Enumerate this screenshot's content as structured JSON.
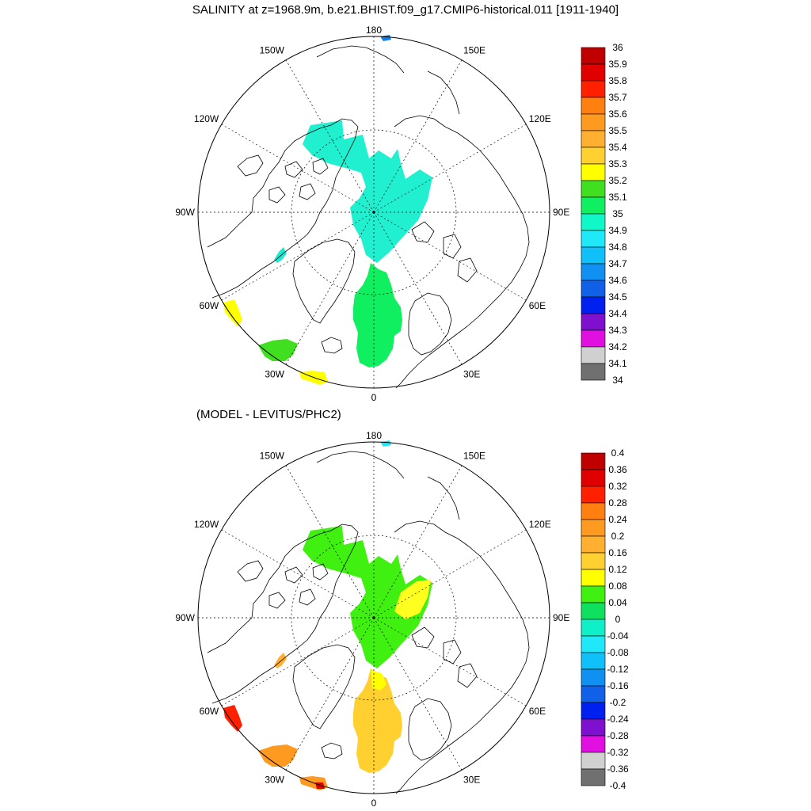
{
  "figure": {
    "title": "SALINITY at z=1968.9m, b.e21.BHIST.f09_g17.CMIP6-historical.011 [1911-1940]",
    "subtitle": "(MODEL - LEVITUS/PHC2)"
  },
  "map": {
    "projection": "north-polar-stereographic",
    "longitude_labels": [
      "180",
      "150E",
      "120E",
      "90E",
      "60E",
      "30E",
      "0",
      "30W",
      "60W",
      "90W",
      "120W",
      "150W"
    ]
  },
  "colorbar_top": {
    "labels": [
      "36",
      "35.9",
      "35.8",
      "35.7",
      "35.6",
      "35.5",
      "35.4",
      "35.3",
      "35.2",
      "35.1",
      "35",
      "34.9",
      "34.8",
      "34.7",
      "34.6",
      "34.5",
      "34.4",
      "34.3",
      "34.2",
      "34.1",
      "34"
    ],
    "colors": [
      "#c00000",
      "#e00000",
      "#ff2000",
      "#ff8010",
      "#ff9a20",
      "#ffb030",
      "#ffd030",
      "#ffff00",
      "#40e020",
      "#10ef60",
      "#10f7c8",
      "#20e8f8",
      "#10c0f8",
      "#1090f0",
      "#1060e8",
      "#0020f0",
      "#8010d0",
      "#e010e0",
      "#d0d0d0",
      "#707070"
    ]
  },
  "colorbar_bottom": {
    "labels": [
      "0.4",
      "0.36",
      "0.32",
      "0.28",
      "0.24",
      "0.2",
      "0.16",
      "0.12",
      "0.08",
      "0.04",
      "0",
      "-0.04",
      "-0.08",
      "-0.12",
      "-0.16",
      "-0.2",
      "-0.24",
      "-0.28",
      "-0.32",
      "-0.36",
      "-0.4"
    ],
    "colors": [
      "#c00000",
      "#e00000",
      "#ff2000",
      "#ff8010",
      "#ff9a20",
      "#ffb030",
      "#ffd030",
      "#ffff00",
      "#40f010",
      "#10e060",
      "#10f0c8",
      "#20e8f8",
      "#10c0f8",
      "#1090f0",
      "#1060e8",
      "#0020f0",
      "#8010d0",
      "#e010e0",
      "#d0d0d0",
      "#707070"
    ]
  },
  "fields_top": {
    "central_arctic": "#20f0d0",
    "nordic_seas": "#10ef60",
    "labrador_sea": "#ffff00",
    "irminger_sea": "#40e020",
    "iberian_gap": "#ffff00",
    "baffin_bay": "#20e8d0",
    "bering_strait": "#1080f0"
  },
  "fields_bottom": {
    "central_arctic": "#40f010",
    "eurasian_highlight": "#ffff20",
    "nordic_seas": "#ffd030",
    "fram_strait": "#ffff00",
    "labrador_sea": "#ff2000",
    "irminger_sea": "#ff9a20",
    "iberian_gap": "#ff9a20",
    "iberian_core": "#e00000",
    "baffin_bay": "#ffb030",
    "bering_strait": "#20e8f8"
  }
}
